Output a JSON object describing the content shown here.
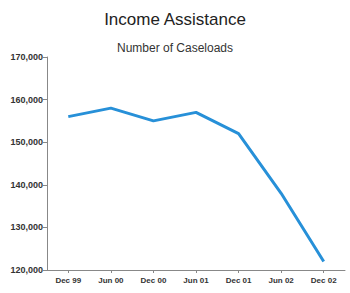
{
  "chart_data": {
    "type": "line",
    "title": "Income Assistance",
    "subtitle": "Number of Caseloads",
    "categories": [
      "Dec 99",
      "Jun 00",
      "Dec 00",
      "Jun 01",
      "Dec 01",
      "Jun 02",
      "Dec 02"
    ],
    "values": [
      156000,
      158000,
      155000,
      157000,
      152000,
      138000,
      122000
    ],
    "color": "#2790d8",
    "ylim": [
      120000,
      170000
    ],
    "yticks": [
      {
        "value": 120000,
        "label": "120,000"
      },
      {
        "value": 130000,
        "label": "130,000"
      },
      {
        "value": 140000,
        "label": "140,000"
      },
      {
        "value": 150000,
        "label": "150,000"
      },
      {
        "value": 160000,
        "label": "160,000"
      },
      {
        "value": 170000,
        "label": "170,000"
      }
    ],
    "grid": false
  }
}
